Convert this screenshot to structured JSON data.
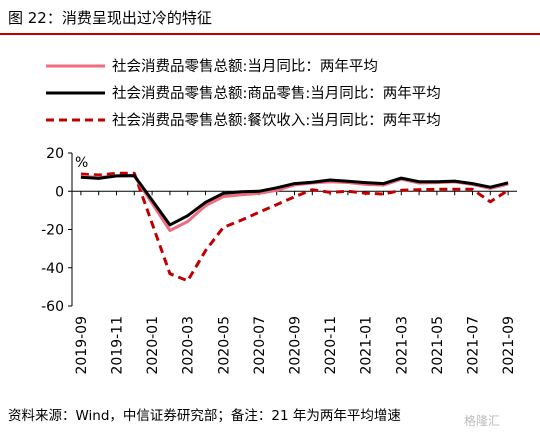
{
  "header": {
    "title": "图 22：消费呈现出过冷的特征"
  },
  "footer": {
    "source": "资料来源：Wind，中信证券研究部；备注：21 年为两年平均增速"
  },
  "watermark": {
    "text": "格隆汇"
  },
  "colors": {
    "accent": "#c00000",
    "series_pink": "#ef6b7e",
    "series_black": "#000000",
    "series_darkred": "#c00000"
  },
  "chart_data": {
    "type": "line",
    "title": "",
    "xlabel": "",
    "ylabel": "%",
    "ylim": [
      -60,
      20
    ],
    "yticks": [
      20,
      0,
      -20,
      -40,
      -60
    ],
    "grid": false,
    "legend_position": "top",
    "x": [
      "2019-09",
      "2019-10",
      "2019-11",
      "2019-12",
      "2020-01",
      "2020-02",
      "2020-03",
      "2020-04",
      "2020-05",
      "2020-06",
      "2020-07",
      "2020-08",
      "2020-09",
      "2020-10",
      "2020-11",
      "2020-12",
      "2021-01",
      "2021-02",
      "2021-03",
      "2021-04",
      "2021-05",
      "2021-06",
      "2021-07",
      "2021-08",
      "2021-09"
    ],
    "xtick_labels": [
      "2019-09",
      "2019-11",
      "2020-01",
      "2020-03",
      "2020-05",
      "2020-07",
      "2020-09",
      "2020-11",
      "2021-01",
      "2021-03",
      "2021-05",
      "2021-07",
      "2021-09"
    ],
    "series": [
      {
        "name": "社会消费品零售总额:当月同比：两年平均",
        "style": "solid",
        "color": "#ef6b7e",
        "values": [
          7.8,
          7.2,
          8.0,
          8.0,
          null,
          -20.5,
          -15.8,
          -7.5,
          -2.8,
          -1.8,
          -1.1,
          0.5,
          3.3,
          4.3,
          5.0,
          4.6,
          3.6,
          3.2,
          6.3,
          4.3,
          4.5,
          4.9,
          3.6,
          1.5,
          3.8
        ]
      },
      {
        "name": "社会消费品零售总额:商品零售:当月同比：两年平均",
        "style": "solid",
        "color": "#000000",
        "values": [
          7.3,
          6.7,
          8.0,
          8.2,
          null,
          -17.6,
          -12.8,
          -5.8,
          -1.1,
          -0.3,
          0.0,
          1.8,
          4.0,
          4.7,
          5.9,
          5.2,
          4.5,
          4.0,
          6.9,
          5.0,
          5.0,
          5.3,
          4.0,
          2.1,
          4.4
        ]
      },
      {
        "name": "社会消费品零售总额:餐饮收入:当月同比：两年平均",
        "style": "dashed",
        "color": "#c00000",
        "values": [
          9.0,
          8.5,
          9.4,
          9.4,
          null,
          -43.1,
          -46.8,
          -31.1,
          -18.9,
          -15.2,
          -11.0,
          -7.0,
          -2.9,
          0.8,
          -0.6,
          0.0,
          -1.0,
          -1.5,
          0.5,
          0.8,
          1.0,
          1.0,
          1.0,
          -5.5,
          0.5
        ]
      }
    ]
  }
}
